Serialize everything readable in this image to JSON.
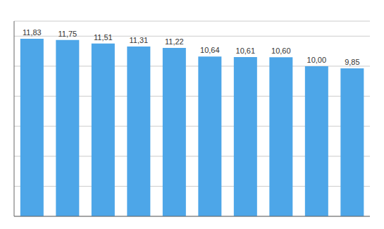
{
  "chart_data": {
    "type": "bar",
    "categories": [
      null,
      null,
      null,
      null,
      null,
      null,
      null,
      null,
      null,
      null
    ],
    "values": [
      11.83,
      11.75,
      11.51,
      11.31,
      11.22,
      10.64,
      10.61,
      10.6,
      10.0,
      9.85
    ],
    "value_labels": [
      "11,83",
      "11,75",
      "11,51",
      "11,31",
      "11,22",
      "10,64",
      "10,61",
      "10,60",
      "10,00",
      "9,85"
    ],
    "color": "#4DA6E8",
    "ylim": [
      0,
      13
    ],
    "yticks": [
      0,
      2,
      4,
      6,
      8,
      10,
      12
    ],
    "grid": true,
    "data_labels": true,
    "tick_labels": false
  }
}
